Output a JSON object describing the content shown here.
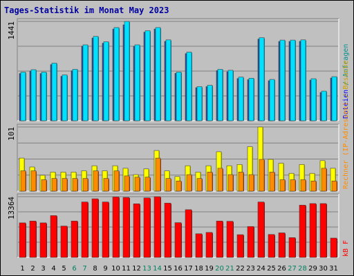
{
  "chart_data": {
    "title": "Tages-Statistik im Monat May 2023",
    "type": "bar",
    "categories": [
      "1",
      "2",
      "3",
      "4",
      "5",
      "6",
      "7",
      "8",
      "9",
      "10",
      "11",
      "12",
      "13",
      "14",
      "15",
      "16",
      "17",
      "18",
      "19",
      "20",
      "21",
      "22",
      "23",
      "24",
      "25",
      "26",
      "27",
      "28",
      "29",
      "30",
      "31"
    ],
    "weekend_days": [
      "6",
      "7",
      "13",
      "14",
      "20",
      "21",
      "27",
      "28"
    ],
    "panels": [
      {
        "id": "requests",
        "ytick": "1441",
        "ymax": 1441,
        "series": [
          {
            "name": "Dateien",
            "color": "#1c4fa8",
            "values": [
              685,
              720,
              685,
              815,
              645,
              725,
              1080,
              1200,
              1125,
              1330,
              1391,
              1080,
              1285,
              1330,
              1152,
              688,
              974,
              480,
              495,
              728,
              710,
              612,
              596,
              1185,
              580,
              1150,
              1150,
              1152,
              590,
              410,
              620
            ]
          },
          {
            "name": "Anfragen",
            "color": "#00e0ff",
            "values": [
              705,
              741,
              706,
              836,
              665,
              746,
              1101,
              1224,
              1146,
              1352,
              1441,
              1101,
              1306,
              1352,
              1173,
              706,
              996,
              495,
              515,
              746,
              732,
              633,
              617,
              1205,
              600,
              1170,
              1170,
              1173,
              610,
              430,
              640
            ]
          }
        ]
      },
      {
        "id": "visits",
        "ytick": "101",
        "ymax": 101,
        "series": [
          {
            "name": "Besuche",
            "color": "#ffff00",
            "values": [
              52,
              38,
              25,
              30,
              30,
              30,
              32,
              40,
              32,
              40,
              36,
              26,
              35,
              64,
              32,
              23,
              40,
              30,
              40,
              62,
              40,
              42,
              70,
              101,
              50,
              44,
              28,
              42,
              28,
              48,
              36
            ]
          },
          {
            "name": "Rechner (IP-Adressen)",
            "color": "#ff8c00",
            "values": [
              32,
              32,
              18,
              20,
              20,
              20,
              20,
              32,
              20,
              32,
              24,
              22,
              22,
              52,
              20,
              16,
              26,
              20,
              30,
              36,
              26,
              30,
              26,
              50,
              30,
              18,
              18,
              18,
              16,
              36,
              16
            ]
          }
        ]
      },
      {
        "id": "kbytes",
        "ytick": "13364",
        "ymax": 13364,
        "series": [
          {
            "name": "kB F",
            "color": "#ff0000",
            "values": [
              7600,
              8000,
              7600,
              9200,
              6900,
              8000,
              12200,
              12900,
              12200,
              13300,
              13200,
              11800,
              13100,
              13364,
              11950,
              7650,
              10500,
              5200,
              5500,
              8000,
              7950,
              5000,
              6800,
              12200,
              5050,
              5400,
              4350,
              11500,
              11850,
              11850,
              4250
            ]
          }
        ]
      }
    ],
    "side_labels": [
      {
        "text": "Anfragen",
        "color": "#009090"
      },
      {
        "text": "Dateien",
        "color": "#0000ff"
      },
      {
        "text": "Besuche",
        "color": "#d0a000"
      },
      {
        "text": "Rechner (IP-Adressen)",
        "color": "#ff8c00"
      },
      {
        "text": "kB F",
        "color": "#ff0000"
      }
    ],
    "colors": {
      "weekday_label": "#000000",
      "weekend_label": "#008060",
      "panel_bg": "#c0c0c0",
      "grid": "#7f7f7f"
    }
  }
}
